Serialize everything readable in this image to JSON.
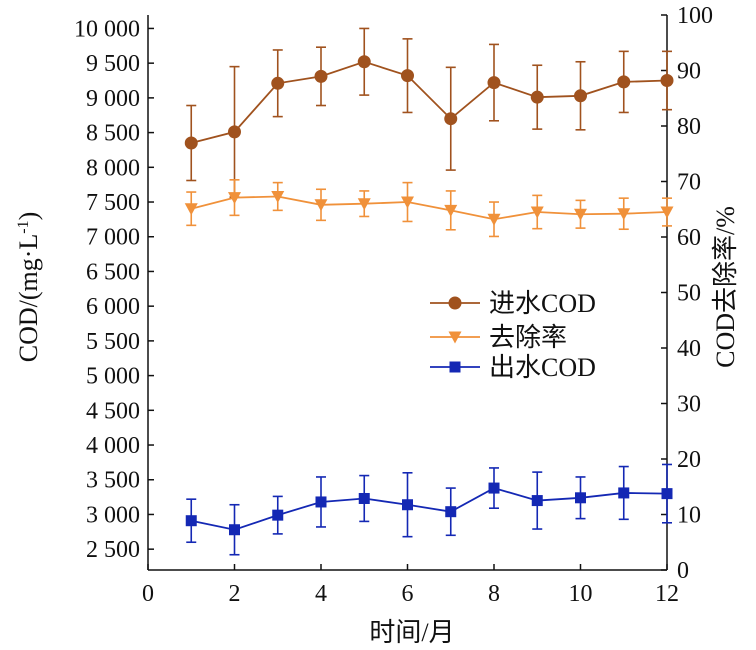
{
  "chart_data": {
    "type": "line",
    "xlabel": "时间/月",
    "ylabel_left": "COD/(mg·L",
    "ylabel_left_sup": "-1",
    "ylabel_left_close": ")",
    "ylabel_right": "COD去除率/%",
    "xlim": [
      0,
      12
    ],
    "ylim_left": [
      2200,
      10000
    ],
    "ylim_right": [
      0,
      100
    ],
    "xticks": [
      "0",
      "2",
      "4",
      "6",
      "8",
      "10",
      "12"
    ],
    "xtick_values": [
      0,
      2,
      4,
      6,
      8,
      10,
      12
    ],
    "yticks_left": [
      "2 500",
      "3 000",
      "3 500",
      "4 000",
      "4 500",
      "5 000",
      "5 500",
      "6 000",
      "6 500",
      "7 000",
      "7 500",
      "8 000",
      "8 500",
      "9 000",
      "9 500",
      "10 000"
    ],
    "ytick_values_left": [
      2500,
      3000,
      3500,
      4000,
      4500,
      5000,
      5500,
      6000,
      6500,
      7000,
      7500,
      8000,
      8500,
      9000,
      9500,
      10000
    ],
    "yticks_right": [
      "0",
      "10",
      "20",
      "30",
      "40",
      "50",
      "60",
      "70",
      "80",
      "90",
      "100"
    ],
    "ytick_values_right": [
      0,
      10,
      20,
      30,
      40,
      50,
      60,
      70,
      80,
      90,
      100
    ],
    "legend_position": "right-center",
    "grid": false,
    "x": [
      1,
      2,
      3,
      4,
      5,
      6,
      7,
      8,
      9,
      10,
      11,
      12
    ],
    "series": [
      {
        "name": "进水COD",
        "axis": "left",
        "marker": "circle",
        "color": "#a0521e",
        "values": [
          8350,
          8510,
          9210,
          9310,
          9520,
          9320,
          8700,
          9220,
          9010,
          9030,
          9230,
          9250
        ],
        "errors": [
          540,
          940,
          480,
          420,
          480,
          530,
          740,
          550,
          460,
          490,
          440,
          420
        ]
      },
      {
        "name": "去除率",
        "axis": "right",
        "marker": "triangle-down",
        "color": "#f0913a",
        "values": [
          65.1,
          67.1,
          67.3,
          65.8,
          66.0,
          66.3,
          64.8,
          63.2,
          64.5,
          64.1,
          64.2,
          64.5
        ],
        "errors": [
          3.0,
          3.2,
          2.5,
          2.8,
          2.3,
          3.5,
          3.5,
          3.1,
          3.0,
          2.5,
          2.8,
          2.5
        ]
      },
      {
        "name": "出水COD",
        "axis": "left",
        "marker": "square",
        "color": "#1428b4",
        "values": [
          2910,
          2780,
          2990,
          3180,
          3230,
          3140,
          3040,
          3380,
          3200,
          3240,
          3310,
          3300
        ],
        "errors": [
          310,
          360,
          270,
          360,
          330,
          460,
          340,
          290,
          410,
          300,
          380,
          420
        ]
      }
    ]
  }
}
